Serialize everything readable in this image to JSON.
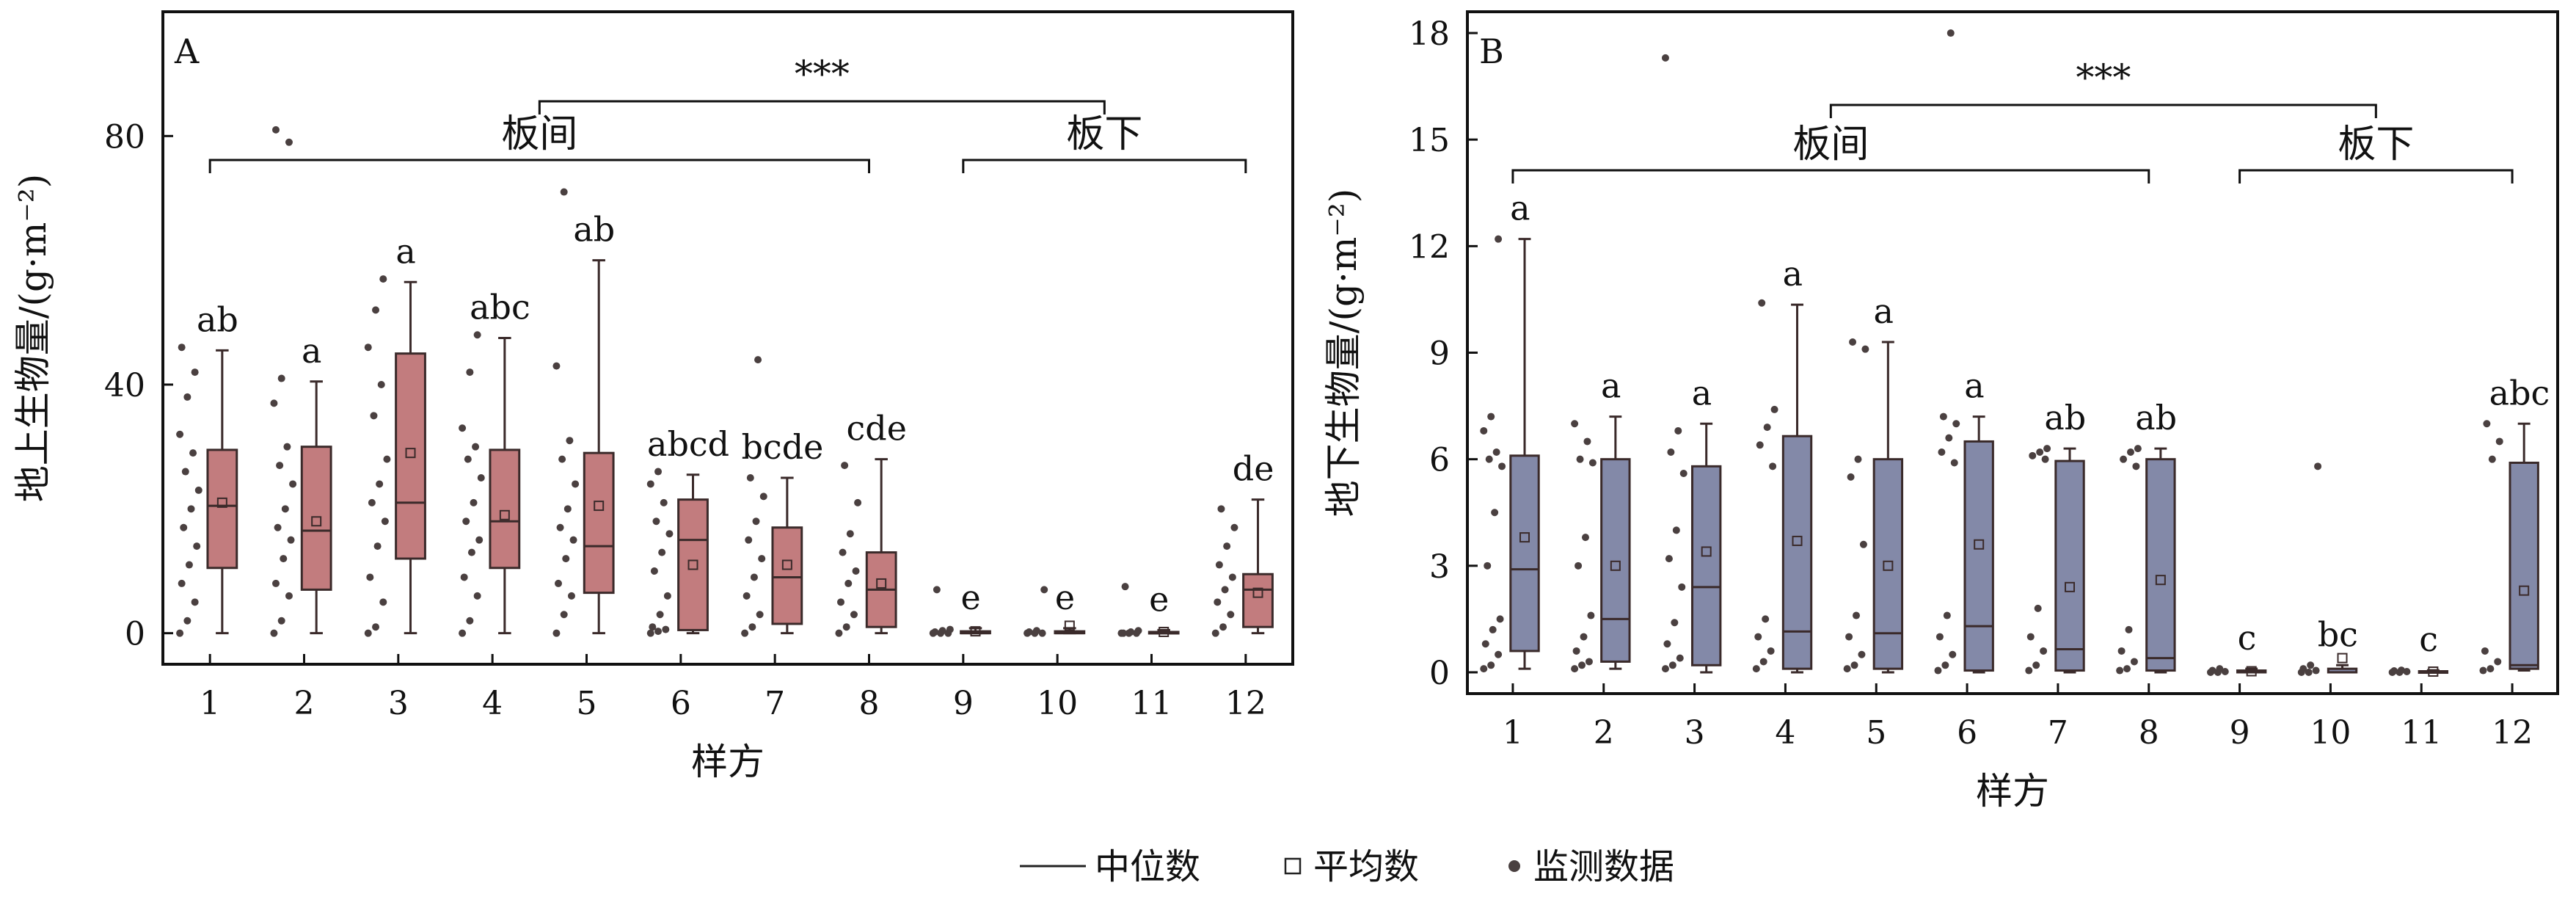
{
  "chart_data": [
    {
      "type": "box",
      "panel_label": "A",
      "ylabel": "地上生物量/(g·m⁻²)",
      "xlabel": "样方",
      "ylim": [
        -5,
        100
      ],
      "yticks": [
        0,
        40,
        80
      ],
      "categories": [
        "1",
        "2",
        "3",
        "4",
        "5",
        "6",
        "7",
        "8",
        "9",
        "10",
        "11",
        "12"
      ],
      "boxes": [
        {
          "q1": 10.5,
          "median": 20.5,
          "q3": 29.5,
          "whisker_low": 0,
          "whisker_high": 45.5,
          "mean": 21,
          "letter": "ab"
        },
        {
          "q1": 7,
          "median": 16.5,
          "q3": 30,
          "whisker_low": 0,
          "whisker_high": 40.5,
          "mean": 18,
          "letter": "a"
        },
        {
          "q1": 12,
          "median": 21,
          "q3": 45,
          "whisker_low": 0,
          "whisker_high": 56.5,
          "mean": 29,
          "letter": "a"
        },
        {
          "q1": 10.5,
          "median": 18,
          "q3": 29.5,
          "whisker_low": 0,
          "whisker_high": 47.5,
          "mean": 19,
          "letter": "abc"
        },
        {
          "q1": 6.5,
          "median": 14,
          "q3": 29,
          "whisker_low": 0,
          "whisker_high": 60,
          "mean": 20.5,
          "letter": "ab"
        },
        {
          "q1": 0.5,
          "median": 15,
          "q3": 21.5,
          "whisker_low": 0,
          "whisker_high": 25.5,
          "mean": 11,
          "letter": "abcd"
        },
        {
          "q1": 1.5,
          "median": 9,
          "q3": 17,
          "whisker_low": 0,
          "whisker_high": 25,
          "mean": 11,
          "letter": "bcde"
        },
        {
          "q1": 1,
          "median": 7,
          "q3": 13,
          "whisker_low": 0,
          "whisker_high": 28,
          "mean": 8,
          "letter": "cde"
        },
        {
          "q1": 0,
          "median": 0,
          "q3": 0.3,
          "whisker_low": 0,
          "whisker_high": 0.8,
          "mean": 0.3,
          "letter": "e"
        },
        {
          "q1": 0,
          "median": 0,
          "q3": 0.3,
          "whisker_low": 0,
          "whisker_high": 0.8,
          "mean": 1.2,
          "letter": "e"
        },
        {
          "q1": 0,
          "median": 0,
          "q3": 0.2,
          "whisker_low": 0,
          "whisker_high": 0.5,
          "mean": 0.2,
          "letter": "e"
        },
        {
          "q1": 1,
          "median": 7,
          "q3": 9.5,
          "whisker_low": 0,
          "whisker_high": 21.5,
          "mean": 6.5,
          "letter": "de"
        }
      ],
      "points": [
        [
          0,
          2,
          5,
          8,
          11,
          14,
          17,
          20,
          23,
          26,
          29,
          32,
          38,
          42,
          46
        ],
        [
          0,
          2,
          6,
          8,
          12,
          15,
          17,
          20,
          24,
          27,
          30,
          37,
          41,
          79,
          81
        ],
        [
          0,
          1,
          5,
          9,
          14,
          18,
          21,
          24,
          28,
          35,
          40,
          46,
          52,
          57
        ],
        [
          0,
          2,
          6,
          9,
          13,
          15,
          18,
          21,
          25,
          28,
          30,
          33,
          42,
          48
        ],
        [
          0,
          3,
          6,
          8,
          12,
          15,
          17,
          20,
          24,
          28,
          31,
          43,
          71
        ],
        [
          0,
          0.3,
          0.6,
          1,
          3,
          6,
          10,
          13,
          16,
          18,
          21,
          24,
          26
        ],
        [
          0,
          1,
          3,
          6,
          9,
          12,
          15,
          18,
          22,
          25,
          44
        ],
        [
          0,
          1,
          3,
          5,
          8,
          10,
          13,
          16,
          21,
          27
        ],
        [
          0,
          0,
          0,
          0.2,
          0.4,
          0.6,
          7
        ],
        [
          0,
          0,
          0,
          0.2,
          0.4,
          7
        ],
        [
          0,
          0,
          0,
          0,
          0.2,
          0.4,
          7.5
        ],
        [
          0,
          1,
          3,
          5,
          7,
          9,
          11,
          14,
          17,
          20
        ]
      ],
      "group_labels": [
        {
          "text": "板间",
          "from": 1,
          "to": 8
        },
        {
          "text": "板下",
          "from": 9,
          "to": 12
        }
      ],
      "significance": "***"
    },
    {
      "type": "box",
      "panel_label": "B",
      "ylabel": "地下生物量/(g·m⁻²)",
      "xlabel": "样方",
      "ylim": [
        -0.6,
        18.6
      ],
      "yticks": [
        0,
        3,
        6,
        9,
        12,
        15,
        18
      ],
      "categories": [
        "1",
        "2",
        "3",
        "4",
        "5",
        "6",
        "7",
        "8",
        "9",
        "10",
        "11",
        "12"
      ],
      "boxes": [
        {
          "q1": 0.6,
          "median": 2.9,
          "q3": 6.1,
          "whisker_low": 0.1,
          "whisker_high": 12.2,
          "mean": 3.8,
          "letter": "a"
        },
        {
          "q1": 0.3,
          "median": 1.5,
          "q3": 6,
          "whisker_low": 0.1,
          "whisker_high": 7.2,
          "mean": 3,
          "letter": "a"
        },
        {
          "q1": 0.2,
          "median": 2.4,
          "q3": 5.8,
          "whisker_low": 0,
          "whisker_high": 7,
          "mean": 3.4,
          "letter": "a"
        },
        {
          "q1": 0.1,
          "median": 1.15,
          "q3": 6.65,
          "whisker_low": 0,
          "whisker_high": 10.35,
          "mean": 3.7,
          "letter": "a"
        },
        {
          "q1": 0.1,
          "median": 1.1,
          "q3": 6,
          "whisker_low": 0,
          "whisker_high": 9.3,
          "mean": 3,
          "letter": "a"
        },
        {
          "q1": 0.05,
          "median": 1.3,
          "q3": 6.5,
          "whisker_low": 0,
          "whisker_high": 7.2,
          "mean": 3.6,
          "letter": "a"
        },
        {
          "q1": 0.05,
          "median": 0.65,
          "q3": 5.95,
          "whisker_low": 0,
          "whisker_high": 6.3,
          "mean": 2.4,
          "letter": "ab"
        },
        {
          "q1": 0.05,
          "median": 0.4,
          "q3": 6,
          "whisker_low": 0,
          "whisker_high": 6.3,
          "mean": 2.6,
          "letter": "ab"
        },
        {
          "q1": 0,
          "median": 0,
          "q3": 0.05,
          "whisker_low": 0,
          "whisker_high": 0.1,
          "mean": 0.03,
          "letter": "c"
        },
        {
          "q1": 0,
          "median": 0,
          "q3": 0.1,
          "whisker_low": 0,
          "whisker_high": 0.2,
          "mean": 0.4,
          "letter": "bc"
        },
        {
          "q1": 0,
          "median": 0,
          "q3": 0.03,
          "whisker_low": 0,
          "whisker_high": 0.06,
          "mean": 0.02,
          "letter": "c"
        },
        {
          "q1": 0.1,
          "median": 0.2,
          "q3": 5.9,
          "whisker_low": 0.05,
          "whisker_high": 7,
          "mean": 2.3,
          "letter": "abc"
        }
      ],
      "points": [
        [
          0.1,
          0.2,
          0.5,
          0.8,
          1.2,
          1.5,
          3,
          4.5,
          5.8,
          6,
          6.2,
          6.8,
          7.2,
          12.2
        ],
        [
          0.1,
          0.2,
          0.3,
          0.6,
          1,
          1.6,
          3,
          3.8,
          5.9,
          6,
          6.5,
          7
        ],
        [
          0.1,
          0.2,
          0.4,
          0.8,
          1.4,
          2.4,
          3.2,
          4,
          5.6,
          6.2,
          6.8,
          17.3
        ],
        [
          0.1,
          0.3,
          0.6,
          1,
          1.5,
          5.8,
          6.4,
          6.9,
          7.4,
          10.4
        ],
        [
          0.1,
          0.2,
          0.5,
          1,
          1.6,
          3.6,
          5.5,
          6,
          9.1,
          9.3
        ],
        [
          0.05,
          0.2,
          0.5,
          1,
          1.6,
          5.9,
          6.2,
          6.6,
          7,
          7.2,
          18
        ],
        [
          0.05,
          0.2,
          0.6,
          1,
          1.8,
          6,
          6.1,
          6.2,
          6.3
        ],
        [
          0.05,
          0.1,
          0.3,
          0.6,
          1.2,
          5.8,
          6,
          6.2,
          6.3
        ],
        [
          0,
          0,
          0.02,
          0.05,
          0.1
        ],
        [
          0,
          0,
          0.05,
          0.1,
          0.2,
          5.8
        ],
        [
          0,
          0,
          0.02,
          0.04,
          0.06
        ],
        [
          0.05,
          0.1,
          0.3,
          0.6,
          6,
          6.5,
          7
        ]
      ],
      "group_labels": [
        {
          "text": "板间",
          "from": 1,
          "to": 8
        },
        {
          "text": "板下",
          "from": 9,
          "to": 12
        }
      ],
      "significance": "***"
    }
  ],
  "legend": [
    {
      "symbol": "line",
      "label": "中位数"
    },
    {
      "symbol": "square",
      "label": "平均数"
    },
    {
      "symbol": "dot",
      "label": "监测数据"
    }
  ],
  "colors": {
    "panel_a_fill": "#c27c7e",
    "panel_b_fill": "#8389a8",
    "box_edge": "#3a2a2a",
    "dots": "#4a4040"
  }
}
